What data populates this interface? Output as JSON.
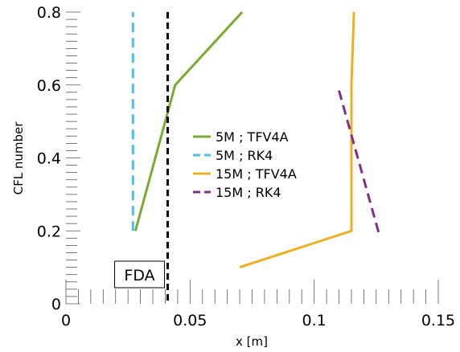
{
  "chart_data": {
    "type": "line",
    "xlabel": "x [m]",
    "ylabel": "CFL number",
    "xlim": [
      0,
      0.15
    ],
    "ylim": [
      0,
      0.8
    ],
    "xticks": [
      0,
      0.05,
      0.1,
      0.15
    ],
    "xtick_labels": [
      "0",
      "0.05",
      "0.1",
      "0.15"
    ],
    "yticks": [
      0,
      0.2,
      0.4,
      0.6,
      0.8
    ],
    "ytick_labels": [
      "0",
      "0.2",
      "0.4",
      "0.6",
      "0.8"
    ],
    "grid": false,
    "legend_position": "center",
    "series": [
      {
        "name": "5M ; TFV4A",
        "color": "#77ac30",
        "dash": "solid",
        "x": [
          0.028,
          0.044,
          0.071
        ],
        "y": [
          0.2,
          0.6,
          0.8
        ]
      },
      {
        "name": "5M ; RK4",
        "color": "#4dbeee",
        "dash": "dashed",
        "x": [
          0.027,
          0.027
        ],
        "y": [
          0.2,
          0.8
        ]
      },
      {
        "name": "15M ; TFV4A",
        "color": "#edb120",
        "dash": "solid",
        "x": [
          0.07,
          0.115,
          0.115,
          0.116
        ],
        "y": [
          0.1,
          0.2,
          0.6,
          0.8
        ]
      },
      {
        "name": "15M ; RK4",
        "color": "#7e2f8e",
        "dash": "dashed",
        "x": [
          0.11,
          0.126
        ],
        "y": [
          0.585,
          0.195
        ]
      }
    ],
    "annotations": [
      {
        "label": "FDA",
        "x": 0.041,
        "color": "#000000",
        "dash": "dashed"
      }
    ]
  }
}
